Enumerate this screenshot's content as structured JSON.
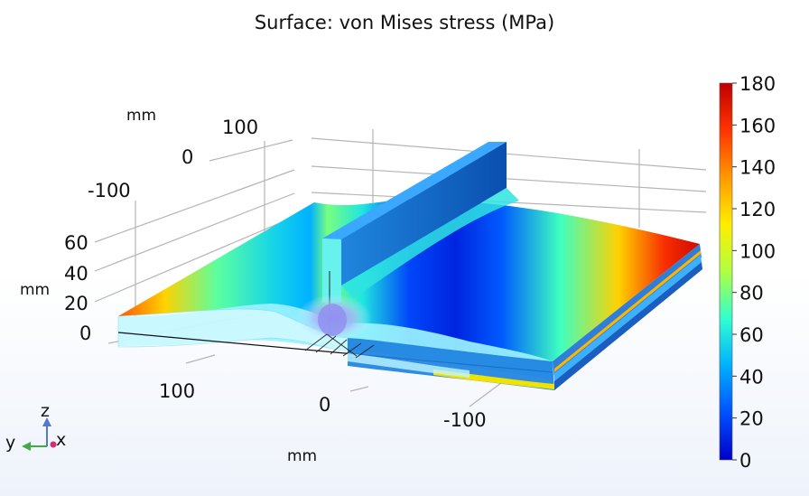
{
  "chart_data": {
    "type": "surface-3d",
    "title": "Surface: von Mises stress (MPa)",
    "axes": {
      "x": {
        "label": "mm",
        "ticks": [
          "100",
          "0",
          "-100"
        ]
      },
      "y": {
        "label": "mm",
        "ticks": [
          "100",
          "0",
          "-100"
        ]
      },
      "z": {
        "label": "mm",
        "ticks": [
          "60",
          "40",
          "20",
          "0"
        ]
      }
    },
    "colorbar": {
      "range": [
        0,
        180
      ],
      "ticks": [
        "180",
        "160",
        "140",
        "120",
        "100",
        "80",
        "60",
        "40",
        "20",
        "0"
      ],
      "colormap": "rainbow",
      "colors": [
        "#0000c8",
        "#0050ff",
        "#00b0ff",
        "#30ffd0",
        "#b0ff40",
        "#ffee00",
        "#ff9900",
        "#ff3300",
        "#c00000"
      ]
    },
    "stress_profile_along_plate": [
      {
        "pos": 0.0,
        "value": 150
      },
      {
        "pos": 0.08,
        "value": 120
      },
      {
        "pos": 0.17,
        "value": 75
      },
      {
        "pos": 0.27,
        "value": 55
      },
      {
        "pos": 0.33,
        "value": 45
      },
      {
        "pos": 0.36,
        "value": 80
      },
      {
        "pos": 0.42,
        "value": 60
      },
      {
        "pos": 0.5,
        "value": 20
      },
      {
        "pos": 0.58,
        "value": 10
      },
      {
        "pos": 0.66,
        "value": 25
      },
      {
        "pos": 0.76,
        "value": 70
      },
      {
        "pos": 0.86,
        "value": 120
      },
      {
        "pos": 0.94,
        "value": 160
      },
      {
        "pos": 1.0,
        "value": 175
      }
    ],
    "triad": {
      "z": "z",
      "y": "y",
      "x": "x"
    }
  }
}
